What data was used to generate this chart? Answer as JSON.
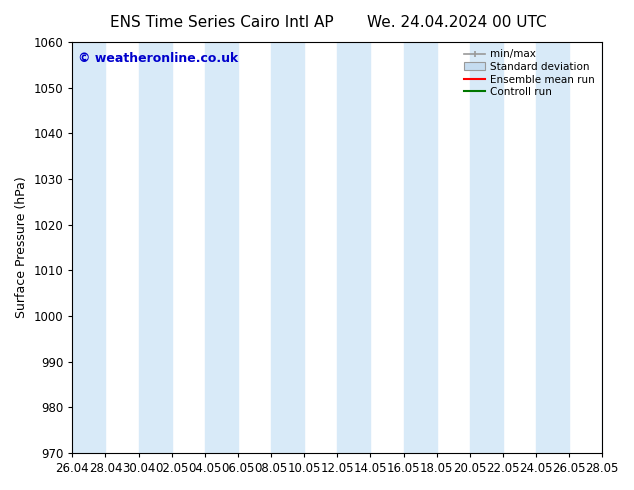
{
  "title_left": "ENS Time Series Cairo Intl AP",
  "title_right": "We. 24.04.2024 00 UTC",
  "ylabel": "Surface Pressure (hPa)",
  "ylim": [
    970,
    1060
  ],
  "yticks": [
    970,
    980,
    990,
    1000,
    1010,
    1020,
    1030,
    1040,
    1050,
    1060
  ],
  "x_tick_labels": [
    "26.04",
    "28.04",
    "30.04",
    "02.05",
    "04.05",
    "06.05",
    "08.05",
    "10.05",
    "12.05",
    "14.05",
    "16.05",
    "18.05",
    "20.05",
    "22.05",
    "24.05",
    "26.05",
    "28.05"
  ],
  "watermark": "© weatheronline.co.uk",
  "watermark_color": "#0000cc",
  "background_color": "#ffffff",
  "plot_bg_color": "#ffffff",
  "band_color": "#d8eaf8",
  "band_alpha": 1.0,
  "legend_minmax_color": "#999999",
  "legend_stddev_facecolor": "#c5dcf0",
  "legend_stddev_edgecolor": "#999999",
  "legend_mean_color": "#ff0000",
  "legend_control_color": "#007700",
  "title_fontsize": 11,
  "tick_label_fontsize": 8.5,
  "ylabel_fontsize": 9,
  "watermark_fontsize": 9
}
